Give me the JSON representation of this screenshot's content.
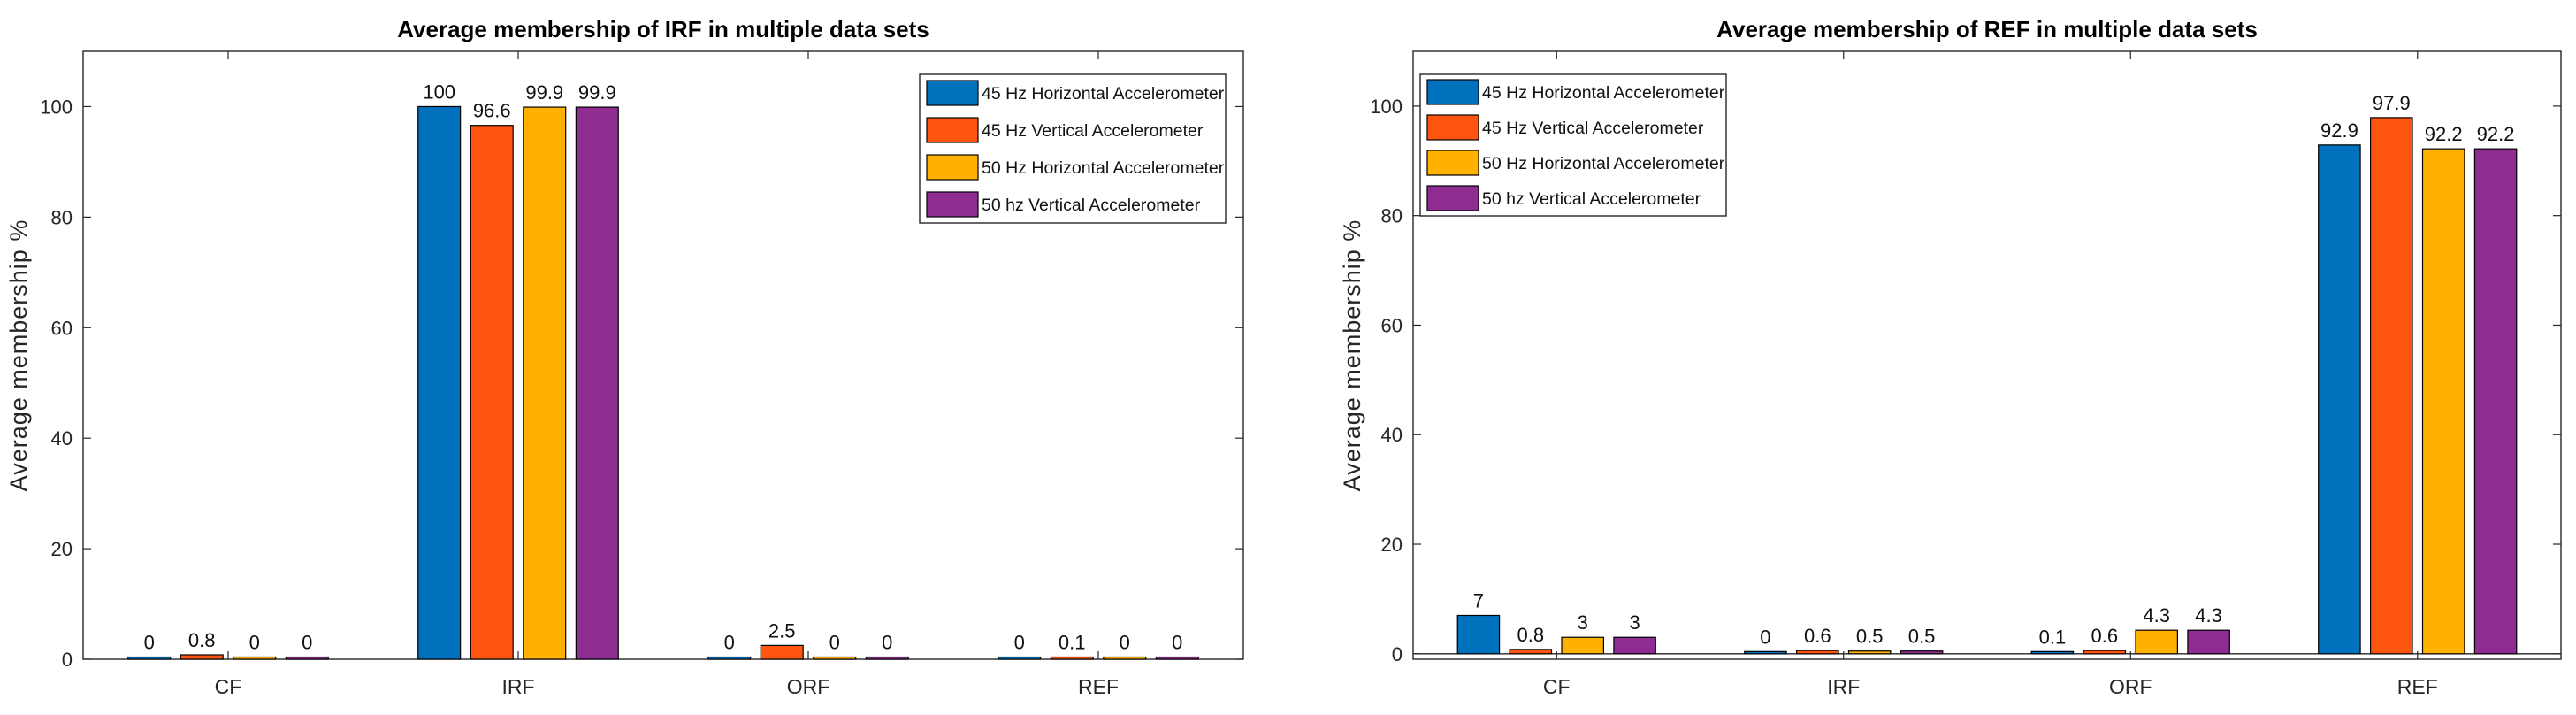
{
  "chart_data": [
    {
      "type": "bar",
      "title": "Average membership of IRF in multiple data sets",
      "xlabel": "",
      "ylabel": "Average membership %",
      "ylim": [
        0,
        110
      ],
      "yticks": [
        0,
        20,
        40,
        60,
        80,
        100
      ],
      "categories": [
        "CF",
        "IRF",
        "ORF",
        "REF"
      ],
      "legend_position": "top-right",
      "series": [
        {
          "name": "45 Hz Horizontal Accelerometer",
          "color": "#0072BD",
          "values": [
            0,
            100,
            0,
            0
          ],
          "labels": [
            "0",
            "100",
            "0",
            "0"
          ]
        },
        {
          "name": "45 Hz Vertical Accelerometer",
          "color": "#FF5511",
          "values": [
            0.8,
            96.6,
            2.5,
            0.1
          ],
          "labels": [
            "0.8",
            "96.6",
            "2.5",
            "0.1"
          ]
        },
        {
          "name": "50 Hz Horizontal Accelerometer",
          "color": "#FFB100",
          "values": [
            0,
            99.9,
            0,
            0
          ],
          "labels": [
            "0",
            "99.9",
            "0",
            "0"
          ]
        },
        {
          "name": "50 hz Vertical Accelerometer",
          "color": "#8E2C91",
          "values": [
            0,
            99.9,
            0,
            0
          ],
          "labels": [
            "0",
            "99.9",
            "0",
            "0"
          ]
        }
      ]
    },
    {
      "type": "bar",
      "title": "Average membership of REF in multiple data sets",
      "xlabel": "",
      "ylabel": "Average membership %",
      "ylim": [
        -1,
        110
      ],
      "yticks": [
        0,
        20,
        40,
        60,
        80,
        100
      ],
      "categories": [
        "CF",
        "IRF",
        "ORF",
        "REF"
      ],
      "legend_position": "top-left",
      "series": [
        {
          "name": "45 Hz Horizontal Accelerometer",
          "color": "#0072BD",
          "values": [
            7,
            0,
            0.1,
            92.9
          ],
          "labels": [
            "7",
            "0",
            "0.1",
            "92.9"
          ]
        },
        {
          "name": "45 Hz Vertical Accelerometer",
          "color": "#FF5511",
          "values": [
            0.8,
            0.6,
            0.6,
            97.9
          ],
          "labels": [
            "0.8",
            "0.6",
            "0.6",
            "97.9"
          ]
        },
        {
          "name": "50 Hz Horizontal Accelerometer",
          "color": "#FFB100",
          "values": [
            3,
            0.5,
            4.3,
            92.2
          ],
          "labels": [
            "3",
            "0.5",
            "4.3",
            "92.2"
          ]
        },
        {
          "name": "50 hz Vertical Accelerometer",
          "color": "#8E2C91",
          "values": [
            3,
            0.5,
            4.3,
            92.2
          ],
          "labels": [
            "3",
            "0.5",
            "4.3",
            "92.2"
          ]
        }
      ]
    }
  ]
}
